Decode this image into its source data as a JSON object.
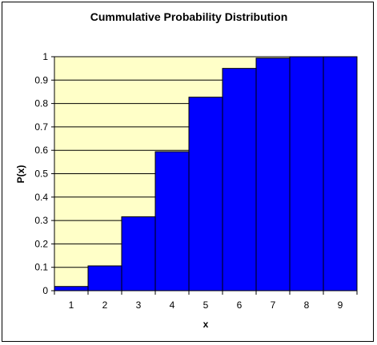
{
  "chart_data": {
    "type": "bar",
    "title": "Cummulative Probability Distribution",
    "xlabel": "x",
    "ylabel": "P(x)",
    "categories": [
      "1",
      "2",
      "3",
      "4",
      "5",
      "6",
      "7",
      "8",
      "9"
    ],
    "values": [
      0.018,
      0.106,
      0.316,
      0.594,
      0.827,
      0.95,
      0.994,
      1.0,
      1.0
    ],
    "ylim": [
      0,
      1
    ],
    "yticks": [
      "0",
      "0.1",
      "0.2",
      "0.3",
      "0.4",
      "0.5",
      "0.6",
      "0.7",
      "0.8",
      "0.9",
      "1"
    ],
    "grid": true,
    "legend": "none",
    "colors": {
      "bar_fill": "#0000FF",
      "bar_stroke": "#000000",
      "plot_background": "#FFFFC8",
      "gridline": "#000000"
    }
  }
}
